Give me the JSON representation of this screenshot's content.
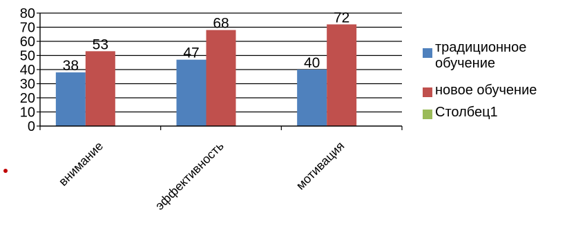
{
  "chart_data": {
    "type": "bar",
    "title": "",
    "xlabel": "",
    "ylabel": "",
    "categories": [
      "внимание",
      "эффективность",
      "мотивация"
    ],
    "series": [
      {
        "name": "традиционное обучение",
        "values": [
          38,
          47,
          40
        ],
        "color": "#4f81bd",
        "show_labels": true
      },
      {
        "name": "новое обучение",
        "values": [
          53,
          68,
          72
        ],
        "color": "#c0504d",
        "show_labels": true
      },
      {
        "name": "Столбец1",
        "values": [
          0,
          0,
          0
        ],
        "color": "#9bbb59",
        "show_labels": false
      }
    ],
    "ylim": [
      0,
      80
    ],
    "yticks": [
      0,
      10,
      20,
      30,
      40,
      50,
      60,
      70,
      80
    ],
    "grid": true,
    "legend_position": "right"
  },
  "colors": {
    "gridline": "#000000",
    "axis": "#000000",
    "bullet": "#c00000"
  }
}
